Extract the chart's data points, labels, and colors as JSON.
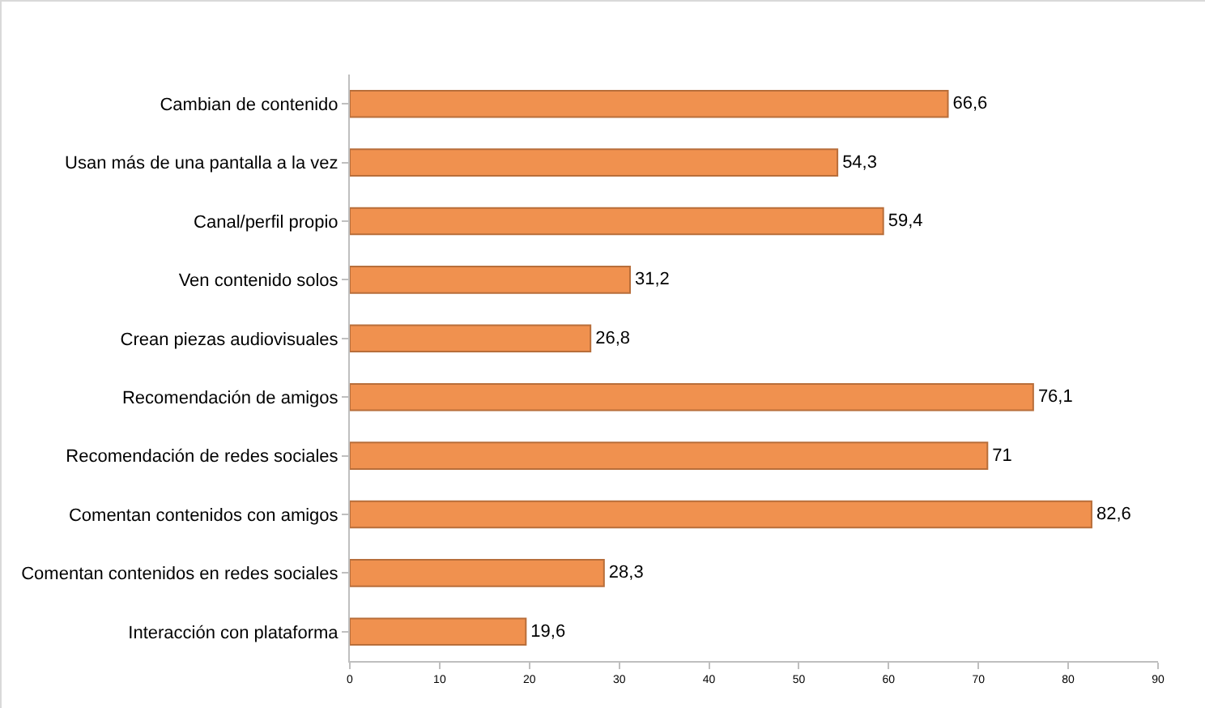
{
  "chart_data": {
    "type": "bar",
    "orientation": "horizontal",
    "categories": [
      "Cambian de contenido",
      "Usan más de una pantalla a la vez",
      "Canal/perfil propio",
      "Ven contenido solos",
      "Crean piezas audiovisuales",
      "Recomendación de amigos",
      "Recomendación de redes sociales",
      "Comentan contenidos con amigos",
      "Comentan contenidos en redes sociales",
      "Interacción con plataforma"
    ],
    "values": [
      66.6,
      54.3,
      59.4,
      31.2,
      26.8,
      76.1,
      71,
      82.6,
      28.3,
      19.6
    ],
    "value_labels": [
      "66,6",
      "54,3",
      "59,4",
      "31,2",
      "26,8",
      "76,1",
      "71",
      "82,6",
      "28,3",
      "19,6"
    ],
    "color": "#f0914f",
    "xlim": [
      0,
      90
    ],
    "xticks": [
      0,
      10,
      20,
      30,
      40,
      50,
      60,
      70,
      80,
      90
    ]
  }
}
